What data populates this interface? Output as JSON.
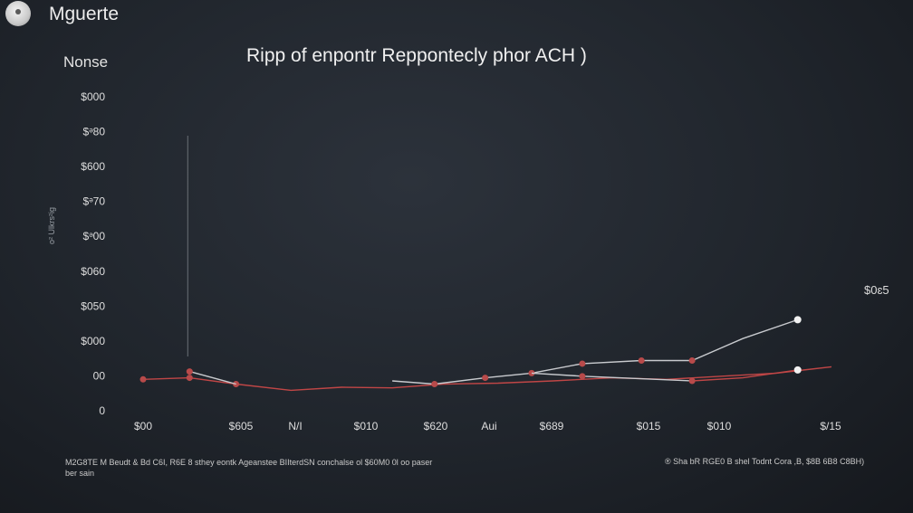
{
  "header": {
    "app_title": "Mguerte",
    "app_icon": "record-icon"
  },
  "chart_data": {
    "type": "line",
    "title": "Ripp of enpontr Reppontecly phor ACH )",
    "ylabel": "Nonse",
    "ylabel_side": "o² Ulkrs²ig",
    "end_label": "$0ɛ5",
    "y_ticks": [
      "$000",
      "$ᵊ80",
      "$600",
      "$ᵊ70",
      "$ᵊ00",
      "$060",
      "$050",
      "$000",
      "00",
      "0"
    ],
    "x_ticks": [
      "$00",
      "$605",
      "N/I",
      "$010",
      "$620",
      "Aui",
      "$689",
      "$015",
      "$010",
      "$/15"
    ],
    "ylim": [
      0,
      10
    ],
    "marker_line": {
      "x_index": 0.55
    },
    "series": [
      {
        "color": "#c04646",
        "x": [
          0,
          0.55,
          1.1,
          1.75,
          2.35,
          2.95,
          3.55,
          4.2,
          4.85,
          5.55,
          6.2,
          6.85,
          7.5,
          8.15
        ],
        "y": [
          1.0,
          1.05,
          0.85,
          0.65,
          0.75,
          0.73,
          0.85,
          0.88,
          0.95,
          1.05,
          1.0,
          1.1,
          1.2,
          1.4
        ],
        "markers_at": [
          0,
          1,
          2
        ]
      },
      {
        "color": "#c8cace",
        "x": [
          0.55,
          1.1
        ],
        "y": [
          1.25,
          0.85
        ],
        "markers_at": [
          0
        ]
      },
      {
        "color": "#c8cace",
        "x": [
          2.95,
          3.45,
          4.05,
          4.6,
          5.2,
          5.9,
          6.5,
          7.1,
          7.75
        ],
        "y": [
          0.95,
          0.85,
          1.05,
          1.2,
          1.5,
          1.6,
          1.6,
          2.3,
          2.9
        ],
        "markers_at": [
          1,
          2,
          3,
          4,
          5,
          6
        ],
        "end_marker": true
      },
      {
        "color": "#c8cace",
        "x": [
          4.6,
          5.2,
          6.5
        ],
        "y": [
          1.2,
          1.1,
          0.95
        ],
        "markers_at": [
          1
        ]
      },
      {
        "color": "#c04646",
        "x": [
          6.5,
          7.1,
          7.75
        ],
        "y": [
          0.95,
          1.05,
          1.3
        ],
        "markers_at": [
          0
        ],
        "end_marker": true
      }
    ]
  },
  "footer": {
    "notes_left": "M2G8TE M Beudt & Bd C6I, R6E 8 sthey eontk Ageanstee BIIterdSN conchalse ol $60M0 0l oo paser ber sain",
    "notes_right": "® Sha bR RGE0 B shel Todnt Cora ,B, $8B 6B8 C8BH)"
  }
}
